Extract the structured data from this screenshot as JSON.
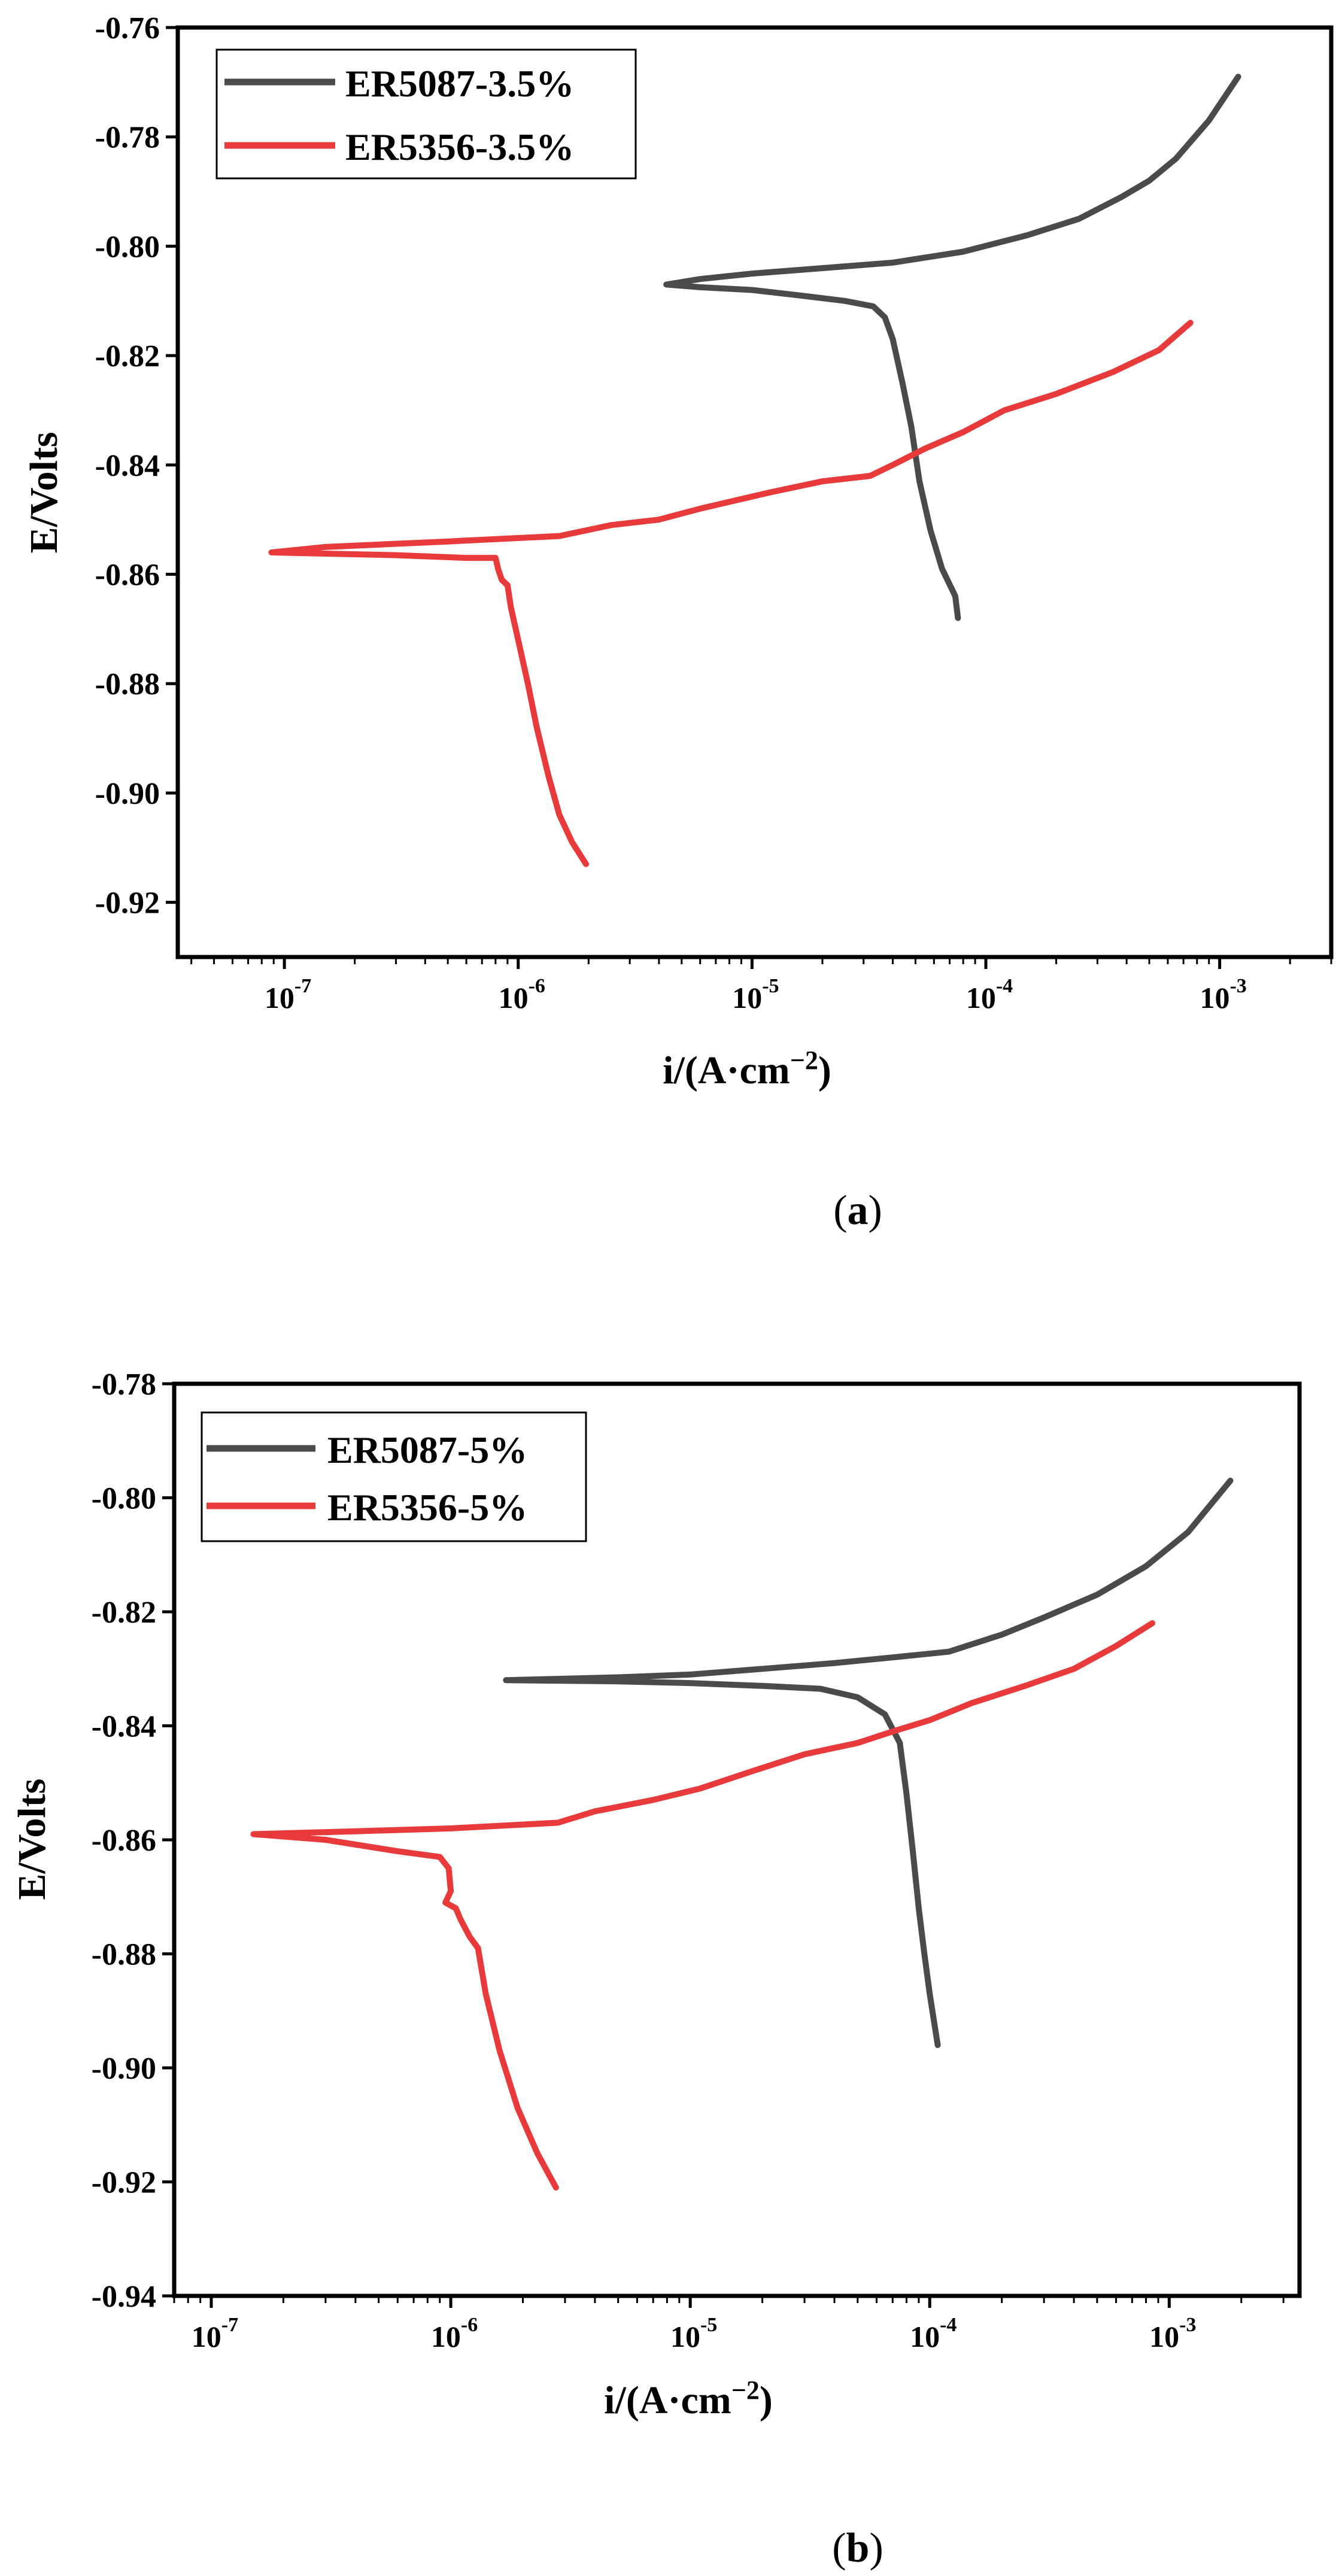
{
  "colors": {
    "series_gray": "#4a4a4a",
    "series_red": "#e8393b",
    "axis": "#000000"
  },
  "panels": [
    {
      "panel_label": "(a)",
      "panel_letter": "a",
      "legend": [
        "ER5087-3.5%",
        "ER5356-3.5%"
      ]
    },
    {
      "panel_label": "(b)",
      "panel_letter": "b",
      "legend": [
        "ER5087-5%",
        "ER5356-5%"
      ]
    }
  ],
  "chart_data": [
    {
      "type": "line",
      "xlabel": "i/(A·cm−2)",
      "ylabel": "E/Volts",
      "xscale": "log",
      "xlim": [
        3.5e-08,
        0.003
      ],
      "ylim": [
        -0.93,
        -0.76
      ],
      "xticks": [
        1e-07,
        1e-06,
        1e-05,
        0.0001,
        0.001
      ],
      "xtick_labels": [
        [
          "10",
          "-7"
        ],
        [
          "10",
          "-6"
        ],
        [
          "10",
          "-5"
        ],
        [
          "10",
          "-4"
        ],
        [
          "10",
          "-3"
        ]
      ],
      "yticks": [
        -0.76,
        -0.78,
        -0.8,
        -0.82,
        -0.84,
        -0.86,
        -0.88,
        -0.9,
        -0.92
      ],
      "ytick_labels": [
        "-0.76",
        "-0.78",
        "-0.80",
        "-0.82",
        "-0.84",
        "-0.86",
        "-0.88",
        "-0.90",
        "-0.92"
      ],
      "legend_position": "top-left",
      "grid": false,
      "series": [
        {
          "name": "ER5087-3.5%",
          "color": "#4a4a4a",
          "points": [
            [
              0.0012,
              -0.769
            ],
            [
              0.0009,
              -0.777
            ],
            [
              0.00065,
              -0.784
            ],
            [
              0.0005,
              -0.788
            ],
            [
              0.00038,
              -0.791
            ],
            [
              0.00025,
              -0.795
            ],
            [
              0.00015,
              -0.798
            ],
            [
              8e-05,
              -0.801
            ],
            [
              4e-05,
              -0.803
            ],
            [
              2e-05,
              -0.804
            ],
            [
              1e-05,
              -0.805
            ],
            [
              6e-06,
              -0.806
            ],
            [
              4.3e-06,
              -0.807
            ],
            [
              6e-06,
              -0.8075
            ],
            [
              1e-05,
              -0.808
            ],
            [
              1.6e-05,
              -0.809
            ],
            [
              2.5e-05,
              -0.81
            ],
            [
              3.3e-05,
              -0.811
            ],
            [
              3.7e-05,
              -0.813
            ],
            [
              4e-05,
              -0.817
            ],
            [
              4.4e-05,
              -0.825
            ],
            [
              4.8e-05,
              -0.833
            ],
            [
              5.2e-05,
              -0.843
            ],
            [
              5.8e-05,
              -0.852
            ],
            [
              6.5e-05,
              -0.859
            ],
            [
              7.4e-05,
              -0.864
            ],
            [
              7.6e-05,
              -0.868
            ]
          ]
        },
        {
          "name": "ER5356-3.5%",
          "color": "#e8393b",
          "points": [
            [
              0.00075,
              -0.814
            ],
            [
              0.00055,
              -0.819
            ],
            [
              0.00035,
              -0.823
            ],
            [
              0.0002,
              -0.827
            ],
            [
              0.00012,
              -0.83
            ],
            [
              8e-05,
              -0.834
            ],
            [
              5.5e-05,
              -0.837
            ],
            [
              4e-05,
              -0.84
            ],
            [
              3.2e-05,
              -0.842
            ],
            [
              2e-05,
              -0.843
            ],
            [
              1.2e-05,
              -0.845
            ],
            [
              6e-06,
              -0.848
            ],
            [
              4e-06,
              -0.85
            ],
            [
              2.5e-06,
              -0.851
            ],
            [
              1.5e-06,
              -0.853
            ],
            [
              5e-07,
              -0.854
            ],
            [
              1.5e-07,
              -0.855
            ],
            [
              8.8e-08,
              -0.856
            ],
            [
              3e-07,
              -0.8565
            ],
            [
              6e-07,
              -0.857
            ],
            [
              8e-07,
              -0.857
            ],
            [
              8.2e-07,
              -0.859
            ],
            [
              8.5e-07,
              -0.861
            ],
            [
              9e-07,
              -0.862
            ],
            [
              9.3e-07,
              -0.866
            ],
            [
              1e-06,
              -0.872
            ],
            [
              1.1e-06,
              -0.88
            ],
            [
              1.2e-06,
              -0.888
            ],
            [
              1.35e-06,
              -0.897
            ],
            [
              1.5e-06,
              -0.904
            ],
            [
              1.7e-06,
              -0.909
            ],
            [
              1.95e-06,
              -0.913
            ]
          ]
        }
      ]
    },
    {
      "type": "line",
      "xlabel": "i/(A·cm−2)",
      "ylabel": "E/Volts",
      "xscale": "log",
      "xlim": [
        7e-08,
        0.0035
      ],
      "ylim": [
        -0.94,
        -0.78
      ],
      "xticks": [
        1e-07,
        1e-06,
        1e-05,
        0.0001,
        0.001
      ],
      "xtick_labels": [
        [
          "10",
          "-7"
        ],
        [
          "10",
          "-6"
        ],
        [
          "10",
          "-5"
        ],
        [
          "10",
          "-4"
        ],
        [
          "10",
          "-3"
        ]
      ],
      "yticks": [
        -0.78,
        -0.8,
        -0.82,
        -0.84,
        -0.86,
        -0.88,
        -0.9,
        -0.92,
        -0.94
      ],
      "ytick_labels": [
        "-0.78",
        "-0.80",
        "-0.82",
        "-0.84",
        "-0.86",
        "-0.88",
        "-0.90",
        "-0.92",
        "-0.94"
      ],
      "legend_position": "top-left",
      "grid": false,
      "series": [
        {
          "name": "ER5087-5%",
          "color": "#4a4a4a",
          "points": [
            [
              0.0018,
              -0.797
            ],
            [
              0.0012,
              -0.806
            ],
            [
              0.0008,
              -0.812
            ],
            [
              0.0005,
              -0.817
            ],
            [
              0.0003,
              -0.821
            ],
            [
              0.0002,
              -0.824
            ],
            [
              0.00012,
              -0.827
            ],
            [
              7e-05,
              -0.828
            ],
            [
              4e-05,
              -0.829
            ],
            [
              2e-05,
              -0.83
            ],
            [
              1e-05,
              -0.831
            ],
            [
              5e-06,
              -0.8315
            ],
            [
              1.7e-06,
              -0.832
            ],
            [
              5e-06,
              -0.8322
            ],
            [
              1e-05,
              -0.8325
            ],
            [
              2e-05,
              -0.833
            ],
            [
              3.5e-05,
              -0.8335
            ],
            [
              5e-05,
              -0.835
            ],
            [
              6.5e-05,
              -0.838
            ],
            [
              7.5e-05,
              -0.843
            ],
            [
              8e-05,
              -0.852
            ],
            [
              8.5e-05,
              -0.862
            ],
            [
              9e-05,
              -0.872
            ],
            [
              9.5e-05,
              -0.88
            ],
            [
              0.0001,
              -0.887
            ],
            [
              0.000108,
              -0.896
            ]
          ]
        },
        {
          "name": "ER5356-5%",
          "color": "#e8393b",
          "points": [
            [
              0.00085,
              -0.822
            ],
            [
              0.0006,
              -0.826
            ],
            [
              0.0004,
              -0.83
            ],
            [
              0.00025,
              -0.833
            ],
            [
              0.00015,
              -0.836
            ],
            [
              0.0001,
              -0.839
            ],
            [
              7e-05,
              -0.841
            ],
            [
              5e-05,
              -0.843
            ],
            [
              3e-05,
              -0.845
            ],
            [
              1.8e-05,
              -0.848
            ],
            [
              1.1e-05,
              -0.851
            ],
            [
              7e-06,
              -0.853
            ],
            [
              4e-06,
              -0.855
            ],
            [
              2.8e-06,
              -0.857
            ],
            [
              1e-06,
              -0.858
            ],
            [
              4e-07,
              -0.8585
            ],
            [
              1.5e-07,
              -0.859
            ],
            [
              3e-07,
              -0.86
            ],
            [
              6e-07,
              -0.862
            ],
            [
              9e-07,
              -0.863
            ],
            [
              9.8e-07,
              -0.865
            ],
            [
              1e-06,
              -0.869
            ],
            [
              9.5e-07,
              -0.871
            ],
            [
              1.05e-06,
              -0.872
            ],
            [
              1.1e-06,
              -0.874
            ],
            [
              1.2e-06,
              -0.877
            ],
            [
              1.3e-06,
              -0.879
            ],
            [
              1.4e-06,
              -0.887
            ],
            [
              1.6e-06,
              -0.897
            ],
            [
              1.9e-06,
              -0.907
            ],
            [
              2.3e-06,
              -0.915
            ],
            [
              2.75e-06,
              -0.921
            ]
          ]
        }
      ]
    }
  ]
}
